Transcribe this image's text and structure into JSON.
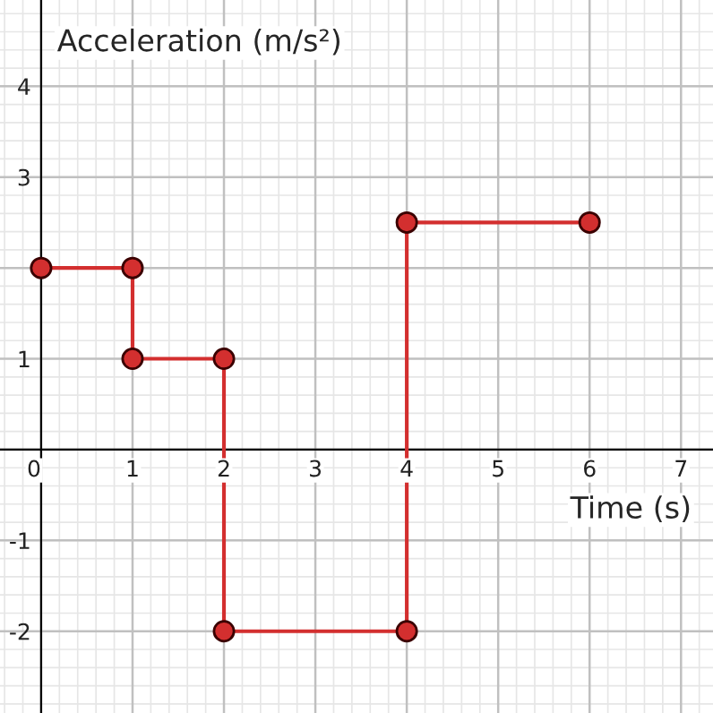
{
  "chart_data": {
    "type": "line",
    "xlabel": "Time (s)",
    "ylabel": "Acceleration (m/s²)",
    "series": [
      {
        "color": "#d32f2f",
        "x": [
          0,
          1,
          1,
          2,
          2,
          4,
          4,
          6
        ],
        "values": [
          2,
          2,
          1,
          1,
          -2,
          -2,
          2.5,
          2.5
        ]
      }
    ],
    "marker": "circle",
    "line_style": "solid",
    "xlim": [
      -0.45,
      7.35
    ],
    "ylim": [
      -2.9,
      4.95
    ],
    "xticks": [
      0,
      1,
      2,
      3,
      4,
      5,
      6,
      7
    ],
    "yticks": [
      -2,
      -1,
      {
        "value": 0,
        "label": null
      },
      1,
      {
        "value": 2,
        "label": null
      },
      3,
      4
    ],
    "grid": true
  }
}
